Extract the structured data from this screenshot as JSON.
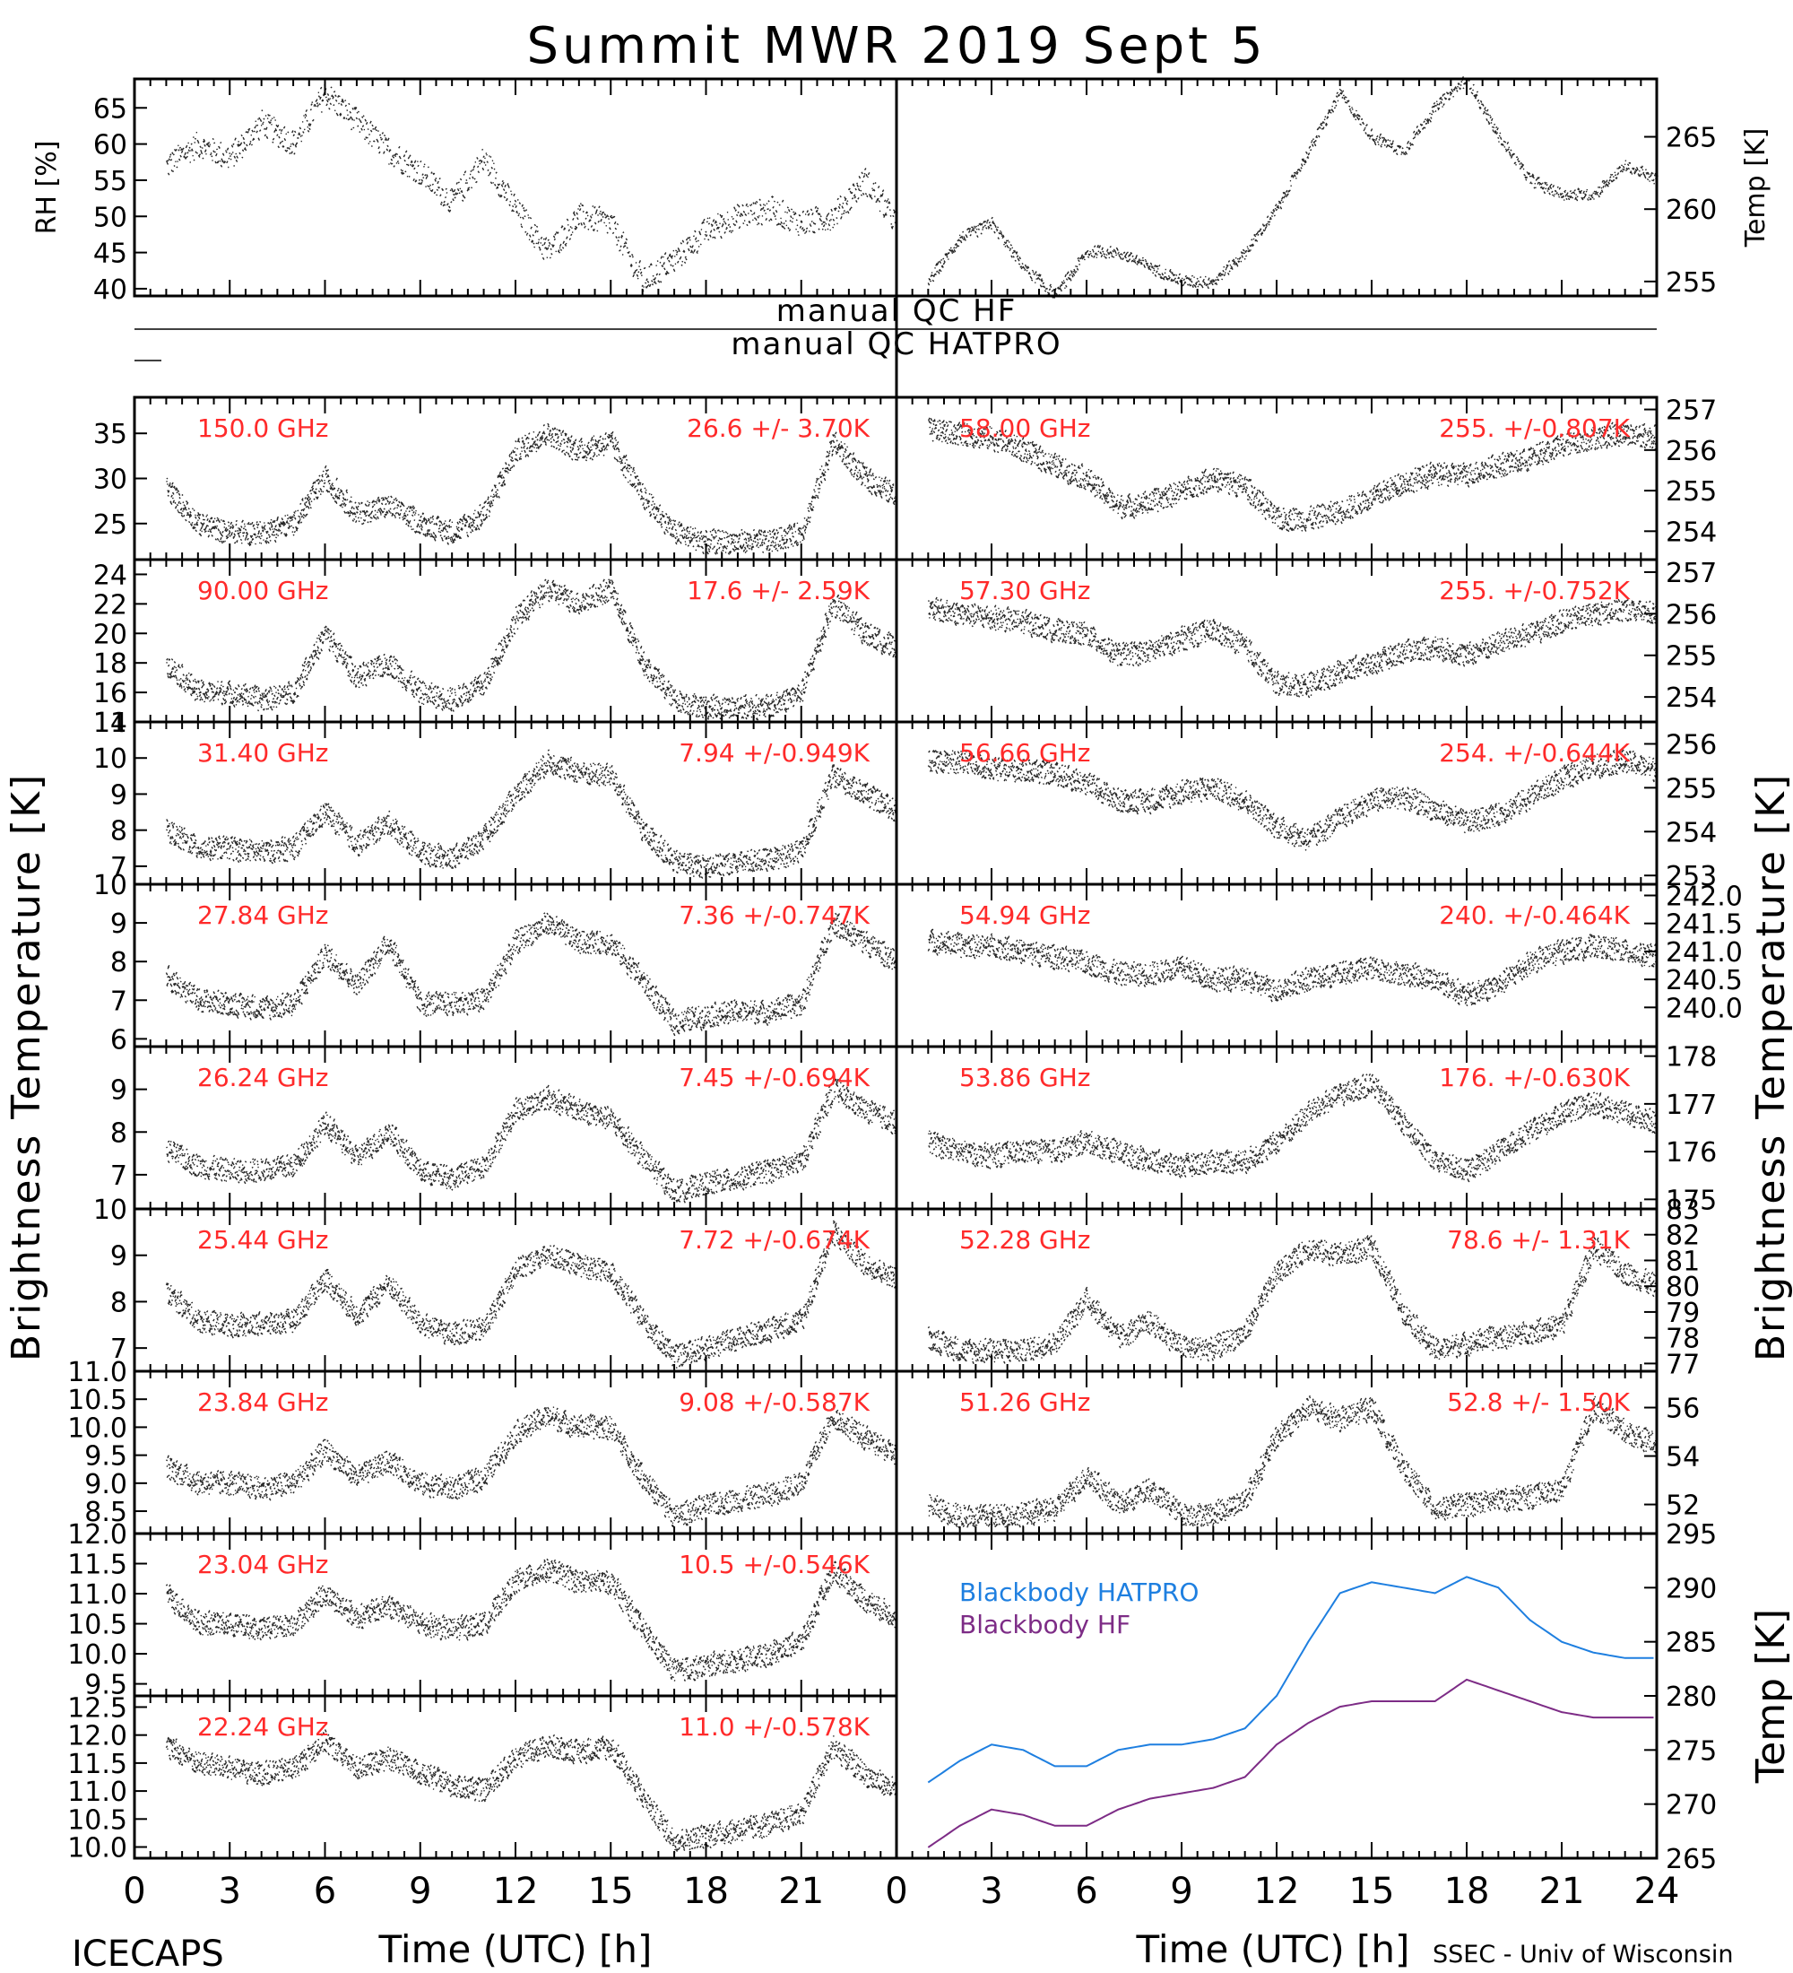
{
  "title": "Summit MWR 2019 Sept  5",
  "footer": {
    "left": "ICECAPS",
    "right": "SSEC - Univ of Wisconsin"
  },
  "colors": {
    "axis": "#000000",
    "trace": "#000000",
    "label": "#ff2a2a",
    "hatpro": "#1e7fe0",
    "hf": "#7d2c86"
  },
  "chart_data": [
    {
      "id": "rh",
      "type": "scatter",
      "ylabel": "RH [%]",
      "ylim": [
        39,
        69
      ],
      "yticks": [
        40,
        45,
        50,
        55,
        60,
        65
      ],
      "x": [
        1,
        2,
        3,
        4,
        5,
        6,
        7,
        8,
        9,
        10,
        11,
        12,
        13,
        14,
        15,
        16,
        17,
        18,
        19,
        20,
        21,
        22,
        23,
        24
      ],
      "values": [
        57,
        60,
        58,
        63,
        60,
        67,
        63,
        59,
        56,
        52,
        58,
        51,
        45,
        50,
        49,
        41,
        44,
        48,
        50,
        51,
        49,
        50,
        55,
        49
      ]
    },
    {
      "id": "temp_air",
      "type": "line",
      "ylabel": "Temp [K]",
      "ylim": [
        254,
        269
      ],
      "yticks": [
        255,
        260,
        265
      ],
      "x": [
        1,
        2,
        3,
        4,
        5,
        6,
        7,
        8,
        9,
        10,
        11,
        12,
        13,
        14,
        15,
        16,
        17,
        18,
        19,
        20,
        21,
        22,
        23,
        24
      ],
      "values": [
        255,
        258,
        259,
        256,
        254,
        257,
        257,
        256,
        255,
        255,
        257,
        260,
        264,
        268,
        265,
        264,
        267,
        269,
        265,
        262,
        261,
        261,
        263,
        262
      ]
    },
    {
      "id": "qc",
      "labels": [
        "manual QC HF",
        "manual QC HATPRO"
      ]
    },
    {
      "id": "150.00",
      "type": "scatter",
      "label": "150.0 GHz",
      "stats": "26.6 +/-  3.70K",
      "ylim": [
        21,
        39
      ],
      "yticks": [
        25,
        30,
        35
      ],
      "x": [
        1,
        2,
        3,
        4,
        5,
        6,
        7,
        8,
        9,
        10,
        11,
        12,
        13,
        14,
        15,
        16,
        17,
        18,
        19,
        20,
        21,
        22,
        23,
        24
      ],
      "values": [
        29,
        25,
        24,
        24,
        25,
        30,
        26,
        27,
        25,
        24,
        26,
        33,
        35,
        33,
        34,
        28,
        24,
        23,
        23,
        23,
        24,
        34,
        30,
        28
      ]
    },
    {
      "id": "58.00",
      "type": "scatter",
      "label": "58.00 GHz",
      "stats": "255. +/-0.807K",
      "ylim": [
        253.3,
        257.3
      ],
      "yticks": [
        254,
        255,
        256,
        257
      ],
      "x": [
        1,
        2,
        3,
        4,
        5,
        6,
        7,
        8,
        9,
        10,
        11,
        12,
        13,
        14,
        15,
        16,
        17,
        18,
        19,
        20,
        21,
        22,
        23,
        24
      ],
      "values": [
        256.5,
        256.4,
        256.3,
        256,
        255.6,
        255.3,
        254.6,
        254.7,
        255,
        255.3,
        255.1,
        254.3,
        254.3,
        254.5,
        254.8,
        255.2,
        255.4,
        255.4,
        255.6,
        255.8,
        256.1,
        256.3,
        256.4,
        256.3
      ]
    },
    {
      "id": "90.00",
      "type": "scatter",
      "label": "90.00 GHz",
      "stats": "17.6 +/-  2.59K",
      "ylim": [
        14,
        25
      ],
      "yticks": [
        14,
        16,
        18,
        20,
        22,
        24
      ],
      "x": [
        1,
        2,
        3,
        4,
        5,
        6,
        7,
        8,
        9,
        10,
        11,
        12,
        13,
        14,
        15,
        16,
        17,
        18,
        19,
        20,
        21,
        22,
        23,
        24
      ],
      "values": [
        18,
        16,
        16,
        15.5,
        16,
        20,
        17,
        18,
        16,
        15.5,
        16.5,
        21,
        23,
        22,
        23,
        18,
        15.5,
        15,
        15,
        15,
        16,
        22,
        20,
        19
      ]
    },
    {
      "id": "57.30",
      "type": "scatter",
      "label": "57.30 GHz",
      "stats": "255. +/-0.752K",
      "ylim": [
        253.4,
        257.3
      ],
      "yticks": [
        254,
        255,
        256,
        257
      ],
      "x": [
        1,
        2,
        3,
        4,
        5,
        6,
        7,
        8,
        9,
        10,
        11,
        12,
        13,
        14,
        15,
        16,
        17,
        18,
        19,
        20,
        21,
        22,
        23,
        24
      ],
      "values": [
        256.1,
        256,
        255.9,
        255.8,
        255.6,
        255.5,
        255,
        255.1,
        255.4,
        255.6,
        255.2,
        254.3,
        254.3,
        254.6,
        254.8,
        255.1,
        255.2,
        255,
        255.3,
        255.5,
        255.8,
        256,
        256.1,
        256
      ]
    },
    {
      "id": "31.40",
      "type": "scatter",
      "label": "31.40 GHz",
      "stats": "7.94 +/-0.949K",
      "ylim": [
        6.5,
        11
      ],
      "yticks": [
        7,
        8,
        9,
        10,
        11
      ],
      "x": [
        1,
        2,
        3,
        4,
        5,
        6,
        7,
        8,
        9,
        10,
        11,
        12,
        13,
        14,
        15,
        16,
        17,
        18,
        19,
        20,
        21,
        22,
        23,
        24
      ],
      "values": [
        8,
        7.5,
        7.5,
        7.4,
        7.5,
        8.5,
        7.6,
        8.2,
        7.4,
        7.2,
        7.8,
        9,
        9.9,
        9.6,
        9.5,
        8,
        7.1,
        7,
        7.1,
        7.2,
        7.4,
        9.5,
        9,
        8.5
      ]
    },
    {
      "id": "56.66",
      "type": "scatter",
      "label": "56.66 GHz",
      "stats": "254. +/-0.644K",
      "ylim": [
        252.8,
        256.5
      ],
      "yticks": [
        253,
        254,
        255,
        256
      ],
      "x": [
        1,
        2,
        3,
        4,
        5,
        6,
        7,
        8,
        9,
        10,
        11,
        12,
        13,
        14,
        15,
        16,
        17,
        18,
        19,
        20,
        21,
        22,
        23,
        24
      ],
      "values": [
        255.6,
        255.6,
        255.4,
        255.4,
        255.3,
        255.1,
        254.7,
        254.7,
        254.9,
        255,
        254.7,
        254.1,
        253.8,
        254.3,
        254.7,
        254.8,
        254.5,
        254.2,
        254.4,
        254.8,
        255.2,
        255.5,
        255.6,
        255.4
      ]
    },
    {
      "id": "27.84",
      "type": "scatter",
      "label": "27.84 GHz",
      "stats": "7.36 +/-0.747K",
      "ylim": [
        5.8,
        10
      ],
      "yticks": [
        6,
        7,
        8,
        9,
        10
      ],
      "x": [
        1,
        2,
        3,
        4,
        5,
        6,
        7,
        8,
        9,
        10,
        11,
        12,
        13,
        14,
        15,
        16,
        17,
        18,
        19,
        20,
        21,
        22,
        23,
        24
      ],
      "values": [
        7.6,
        7,
        6.9,
        6.8,
        6.9,
        8.2,
        7.4,
        8.5,
        6.9,
        6.9,
        7,
        8.5,
        9,
        8.5,
        8.5,
        7.5,
        6.4,
        6.6,
        6.7,
        6.7,
        6.9,
        9,
        8.5,
        8
      ]
    },
    {
      "id": "54.94",
      "type": "scatter",
      "label": "54.94 GHz",
      "stats": "240. +/-0.464K",
      "ylim": [
        239.3,
        242.2
      ],
      "yticks": [
        240,
        240.5,
        241,
        241.5,
        242
      ],
      "ytickfmt": [
        "240.0",
        "240.5",
        "241.0",
        "241.5",
        "242.0"
      ],
      "x": [
        1,
        2,
        3,
        4,
        5,
        6,
        7,
        8,
        9,
        10,
        11,
        12,
        13,
        14,
        15,
        16,
        17,
        18,
        19,
        20,
        21,
        22,
        23,
        24
      ],
      "values": [
        241.2,
        241.1,
        241.1,
        241,
        240.9,
        240.8,
        240.6,
        240.6,
        240.7,
        240.5,
        240.5,
        240.3,
        240.5,
        240.6,
        240.7,
        240.6,
        240.5,
        240.2,
        240.4,
        240.8,
        241,
        241.1,
        241,
        240.9
      ]
    },
    {
      "id": "26.24",
      "type": "scatter",
      "label": "26.24 GHz",
      "stats": "7.45 +/-0.694K",
      "ylim": [
        6.2,
        10
      ],
      "yticks": [
        7,
        8,
        9
      ],
      "x": [
        1,
        2,
        3,
        4,
        5,
        6,
        7,
        8,
        9,
        10,
        11,
        12,
        13,
        14,
        15,
        16,
        17,
        18,
        19,
        20,
        21,
        22,
        23,
        24
      ],
      "values": [
        7.6,
        7.2,
        7.1,
        7.1,
        7.2,
        8.2,
        7.4,
        8,
        7.1,
        6.9,
        7.2,
        8.5,
        8.8,
        8.5,
        8.3,
        7.4,
        6.6,
        6.8,
        6.9,
        7.1,
        7.3,
        9,
        8.5,
        8.2
      ]
    },
    {
      "id": "53.86",
      "type": "scatter",
      "label": "53.86 GHz",
      "stats": "176. +/-0.630K",
      "ylim": [
        174.8,
        178.2
      ],
      "yticks": [
        175,
        176,
        177,
        178
      ],
      "x": [
        1,
        2,
        3,
        4,
        5,
        6,
        7,
        8,
        9,
        10,
        11,
        12,
        13,
        14,
        15,
        16,
        17,
        18,
        19,
        20,
        21,
        22,
        23,
        24
      ],
      "values": [
        176.2,
        176,
        175.9,
        176,
        176,
        176.2,
        176,
        175.8,
        175.7,
        175.8,
        175.8,
        176.2,
        176.8,
        177.2,
        177.4,
        176.6,
        175.8,
        175.6,
        176,
        176.4,
        176.8,
        177,
        176.8,
        176.6
      ]
    },
    {
      "id": "25.44",
      "type": "scatter",
      "label": "25.44 GHz",
      "stats": "7.72 +/-0.674K",
      "ylim": [
        6.5,
        10
      ],
      "yticks": [
        7,
        8,
        9,
        10
      ],
      "x": [
        1,
        2,
        3,
        4,
        5,
        6,
        7,
        8,
        9,
        10,
        11,
        12,
        13,
        14,
        15,
        16,
        17,
        18,
        19,
        20,
        21,
        22,
        23,
        24
      ],
      "values": [
        8.2,
        7.6,
        7.5,
        7.5,
        7.6,
        8.5,
        7.7,
        8.4,
        7.5,
        7.3,
        7.4,
        8.7,
        9,
        8.8,
        8.6,
        7.6,
        6.8,
        7,
        7.2,
        7.4,
        7.6,
        9.5,
        8.8,
        8.5
      ]
    },
    {
      "id": "52.28",
      "type": "scatter",
      "label": "52.28 GHz",
      "stats": "78.6 +/-  1.31K",
      "ylim": [
        76.7,
        83
      ],
      "yticks": [
        77,
        78,
        79,
        80,
        81,
        82,
        83
      ],
      "x": [
        1,
        2,
        3,
        4,
        5,
        6,
        7,
        8,
        9,
        10,
        11,
        12,
        13,
        14,
        15,
        16,
        17,
        18,
        19,
        20,
        21,
        22,
        23,
        24
      ],
      "values": [
        78,
        77.5,
        77.5,
        77.5,
        77.8,
        79.5,
        78,
        78.6,
        77.6,
        77.6,
        78.2,
        80.5,
        81.5,
        81.2,
        81.5,
        79,
        77.5,
        77.8,
        78,
        78.2,
        78.5,
        81.5,
        80.5,
        80
      ]
    },
    {
      "id": "23.84",
      "type": "scatter",
      "label": "23.84 GHz",
      "stats": "9.08 +/-0.587K",
      "ylim": [
        8.1,
        11
      ],
      "yticks": [
        8.5,
        9,
        9.5,
        10,
        10.5,
        11
      ],
      "ytickfmt": [
        "8.5",
        "9.0",
        "9.5",
        "10.0",
        "10.5",
        "11.0"
      ],
      "x": [
        1,
        2,
        3,
        4,
        5,
        6,
        7,
        8,
        9,
        10,
        11,
        12,
        13,
        14,
        15,
        16,
        17,
        18,
        19,
        20,
        21,
        22,
        23,
        24
      ],
      "values": [
        9.3,
        9,
        9,
        8.9,
        9,
        9.6,
        9.1,
        9.4,
        9,
        8.9,
        9.1,
        9.9,
        10.2,
        10,
        10,
        9.1,
        8.4,
        8.6,
        8.7,
        8.8,
        9,
        10.2,
        9.8,
        9.5
      ]
    },
    {
      "id": "51.26",
      "type": "scatter",
      "label": "51.26 GHz",
      "stats": "52.8 +/-  1.50K",
      "ylim": [
        50.8,
        57.5
      ],
      "yticks": [
        52,
        54,
        56
      ],
      "x": [
        1,
        2,
        3,
        4,
        5,
        6,
        7,
        8,
        9,
        10,
        11,
        12,
        13,
        14,
        15,
        16,
        17,
        18,
        19,
        20,
        21,
        22,
        23,
        24
      ],
      "values": [
        52,
        51.5,
        51.5,
        51.6,
        51.8,
        53.2,
        52,
        52.6,
        51.6,
        51.6,
        52.2,
        54.8,
        56,
        55.5,
        56,
        53.5,
        51.8,
        52,
        52.2,
        52.3,
        52.6,
        56,
        55,
        54.5
      ]
    },
    {
      "id": "23.04",
      "type": "scatter",
      "label": "23.04 GHz",
      "stats": "10.5 +/-0.546K",
      "ylim": [
        9.3,
        12
      ],
      "yticks": [
        9.5,
        10,
        10.5,
        11,
        11.5,
        12
      ],
      "ytickfmt": [
        "9.5",
        "10.0",
        "10.5",
        "11.0",
        "11.5",
        "12.0"
      ],
      "x": [
        1,
        2,
        3,
        4,
        5,
        6,
        7,
        8,
        9,
        10,
        11,
        12,
        13,
        14,
        15,
        16,
        17,
        18,
        19,
        20,
        21,
        22,
        23,
        24
      ],
      "values": [
        11,
        10.5,
        10.5,
        10.4,
        10.5,
        11,
        10.6,
        10.8,
        10.5,
        10.4,
        10.5,
        11.2,
        11.4,
        11.2,
        11.2,
        10.4,
        9.7,
        9.8,
        9.9,
        10,
        10.2,
        11.4,
        10.9,
        10.6
      ]
    },
    {
      "id": "blackbody",
      "type": "line",
      "ylabel": "Temp [K]",
      "ylim": [
        265,
        295
      ],
      "yticks": [
        265,
        270,
        275,
        280,
        285,
        290,
        295
      ],
      "x": [
        1,
        2,
        3,
        4,
        5,
        6,
        7,
        8,
        9,
        10,
        11,
        12,
        13,
        14,
        15,
        16,
        17,
        18,
        19,
        20,
        21,
        22,
        23,
        24
      ],
      "series": [
        {
          "name": "Blackbody HATPRO",
          "values": [
            272,
            274,
            275.5,
            275,
            273.5,
            273.5,
            275,
            275.5,
            275.5,
            276,
            277,
            280,
            285,
            289.5,
            290.5,
            290,
            289.5,
            291,
            290,
            287,
            285,
            284,
            283.5,
            283.5
          ]
        },
        {
          "name": "Blackbody HF",
          "values": [
            266,
            268,
            269.5,
            269,
            268,
            268,
            269.5,
            270.5,
            271,
            271.5,
            272.5,
            275.5,
            277.5,
            279,
            279.5,
            279.5,
            279.5,
            281.5,
            280.5,
            279.5,
            278.5,
            278,
            278,
            278
          ]
        }
      ]
    },
    {
      "id": "22.24",
      "type": "scatter",
      "label": "22.24 GHz",
      "stats": "11.0 +/-0.578K",
      "ylim": [
        9.8,
        12.7
      ],
      "yticks": [
        10,
        10.5,
        11,
        11.5,
        12,
        12.5
      ],
      "ytickfmt": [
        "10.0",
        "10.5",
        "11.0",
        "11.5",
        "12.0",
        "12.5"
      ],
      "x": [
        1,
        2,
        3,
        4,
        5,
        6,
        7,
        8,
        9,
        10,
        11,
        12,
        13,
        14,
        15,
        16,
        17,
        18,
        19,
        20,
        21,
        22,
        23,
        24
      ],
      "values": [
        11.8,
        11.5,
        11.4,
        11.3,
        11.4,
        11.9,
        11.4,
        11.6,
        11.3,
        11.1,
        11,
        11.6,
        11.8,
        11.7,
        11.8,
        10.9,
        10.1,
        10.2,
        10.3,
        10.4,
        10.6,
        11.8,
        11.3,
        11
      ]
    }
  ],
  "axes": {
    "xlabel": "Time (UTC) [h]",
    "xticks": [
      0,
      3,
      6,
      9,
      12,
      15,
      18,
      21,
      24
    ],
    "xticklabels_left": [
      "0",
      "3",
      "6",
      "9",
      "12",
      "15",
      "18",
      "21",
      ""
    ],
    "xticklabels_right": [
      "0",
      "3",
      "6",
      "9",
      "12",
      "15",
      "18",
      "21",
      "24"
    ],
    "xlim": [
      0,
      24
    ],
    "ylabel_left": "Brightness Temperature [K]",
    "ylabel_right": "Brightness Temperature [K]"
  }
}
